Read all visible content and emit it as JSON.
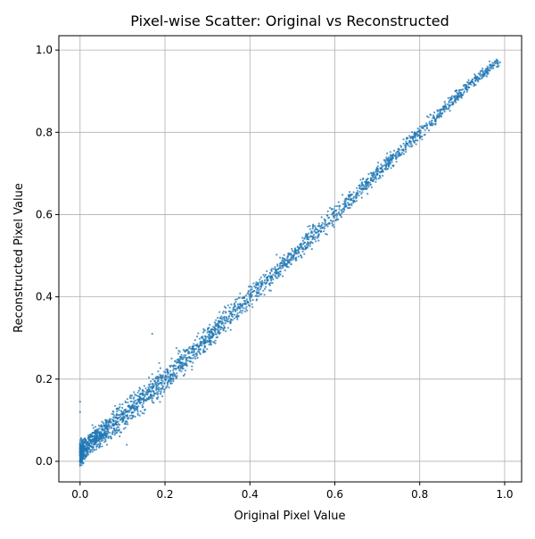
{
  "chart_data": {
    "type": "scatter",
    "title": "Pixel-wise Scatter: Original vs Reconstructed",
    "xlabel": "Original Pixel Value",
    "ylabel": "Reconstructed Pixel Value",
    "xlim": [
      -0.05,
      1.04
    ],
    "ylim": [
      -0.05,
      1.035
    ],
    "xticks": [
      0.0,
      0.2,
      0.4,
      0.6,
      0.8,
      1.0
    ],
    "xtick_labels": [
      "0.0",
      "0.2",
      "0.4",
      "0.6",
      "0.8",
      "1.0"
    ],
    "yticks": [
      0.0,
      0.2,
      0.4,
      0.6,
      0.8,
      1.0
    ],
    "ytick_labels": [
      "0.0",
      "0.2",
      "0.4",
      "0.6",
      "0.8",
      "1.0"
    ],
    "grid": true,
    "legend": "none",
    "color": "#1f77b4",
    "trend": {
      "description": "points lie tightly along y ≈ x",
      "x": [
        0.0,
        0.1,
        0.2,
        0.3,
        0.4,
        0.5,
        0.6,
        0.7,
        0.8,
        0.9,
        0.98
      ],
      "y": [
        0.02,
        0.11,
        0.2,
        0.3,
        0.4,
        0.5,
        0.6,
        0.7,
        0.8,
        0.9,
        0.97
      ],
      "spread": [
        0.03,
        0.035,
        0.035,
        0.03,
        0.03,
        0.025,
        0.025,
        0.02,
        0.02,
        0.015,
        0.01
      ]
    },
    "outliers": [
      {
        "x": 0.0,
        "y": 0.145
      },
      {
        "x": 0.0,
        "y": 0.12
      },
      {
        "x": 0.17,
        "y": 0.31
      },
      {
        "x": 0.11,
        "y": 0.04
      }
    ]
  }
}
